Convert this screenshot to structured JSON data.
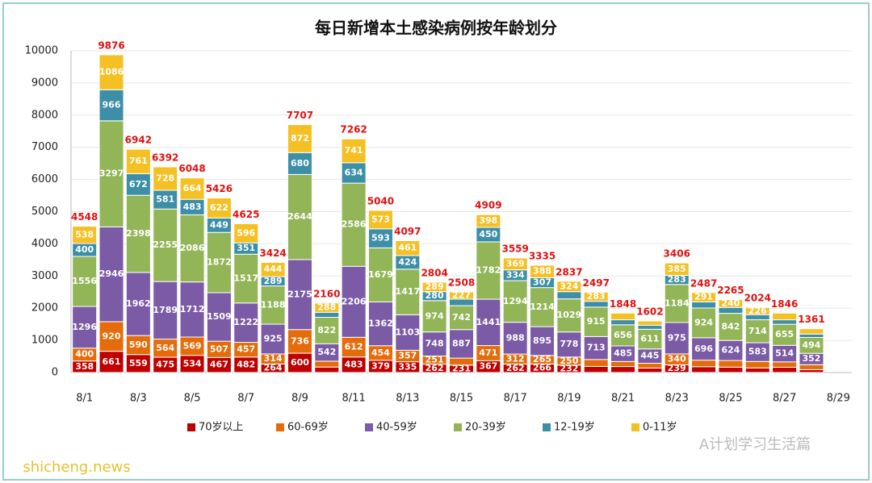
{
  "chart_data": {
    "type": "stacked_bar",
    "title": "每日新增本土感染病例按年龄划分",
    "categories": [
      "8/1",
      null,
      "8/3",
      null,
      "8/5",
      null,
      "8/7",
      null,
      "8/9",
      null,
      "8/11",
      null,
      "8/13",
      null,
      "8/15",
      null,
      "8/17",
      null,
      "8/19",
      null,
      "8/21",
      null,
      "8/23",
      null,
      "8/25",
      null,
      "8/27",
      null,
      "8/29"
    ],
    "series": [
      {
        "name": "70岁以上",
        "color": "#c00000",
        "values": [
          358,
          661,
          559,
          475,
          534,
          467,
          482,
          264,
          600,
          171,
          483,
          379,
          335,
          262,
          231,
          367,
          262,
          266,
          232,
          190,
          186,
          138,
          239,
          181,
          167,
          144,
          164,
          90,
          null
        ]
      },
      {
        "name": "60-69岁",
        "color": "#e46c0a",
        "values": [
          400,
          920,
          590,
          564,
          569,
          507,
          457,
          314,
          736,
          182,
          612,
          454,
          357,
          251,
          218,
          471,
          312,
          265,
          250,
          215,
          156,
          150,
          340,
          204,
          207,
          199,
          167,
          154,
          null
        ]
      },
      {
        "name": "40-59岁",
        "color": "#7b5aa6",
        "values": [
          1296,
          2946,
          1962,
          1789,
          1712,
          1509,
          1222,
          925,
          2175,
          542,
          2206,
          1362,
          1103,
          748,
          887,
          1441,
          988,
          895,
          778,
          713,
          485,
          445,
          975,
          696,
          624,
          583,
          514,
          352,
          null
        ]
      },
      {
        "name": "20-39岁",
        "color": "#92b557",
        "values": [
          1556,
          3297,
          2398,
          2255,
          2086,
          1872,
          1517,
          1188,
          2644,
          822,
          2586,
          1679,
          1417,
          974,
          742,
          1782,
          1294,
          1214,
          1029,
          915,
          656,
          611,
          1184,
          924,
          842,
          714,
          655,
          494,
          null
        ]
      },
      {
        "name": "12-19岁",
        "color": "#3d8fa8",
        "values": [
          400,
          966,
          672,
          581,
          483,
          449,
          351,
          289,
          680,
          155,
          634,
          593,
          424,
          280,
          203,
          450,
          334,
          307,
          224,
          181,
          157,
          126,
          283,
          191,
          185,
          158,
          139,
          107,
          null
        ]
      },
      {
        "name": "0-11岁",
        "color": "#f5c024",
        "values": [
          538,
          1086,
          761,
          728,
          664,
          622,
          596,
          444,
          872,
          288,
          741,
          573,
          461,
          289,
          227,
          398,
          369,
          388,
          324,
          283,
          208,
          132,
          385,
          291,
          240,
          226,
          207,
          164,
          null
        ]
      }
    ],
    "totals": [
      4548,
      9876,
      6942,
      6392,
      6048,
      5426,
      4625,
      3424,
      7707,
      2160,
      7262,
      5040,
      4097,
      2804,
      2508,
      4909,
      3559,
      3335,
      2837,
      2497,
      1848,
      1602,
      3406,
      2487,
      2265,
      2024,
      1846,
      1361,
      null
    ],
    "ylim": [
      0,
      10000
    ],
    "yticks": [
      0,
      1000,
      2000,
      3000,
      4000,
      5000,
      6000,
      7000,
      8000,
      9000,
      10000
    ],
    "grid": true,
    "legend": "bottom",
    "annotations": [
      "A计划学习生活篇",
      "shicheng.news"
    ]
  }
}
